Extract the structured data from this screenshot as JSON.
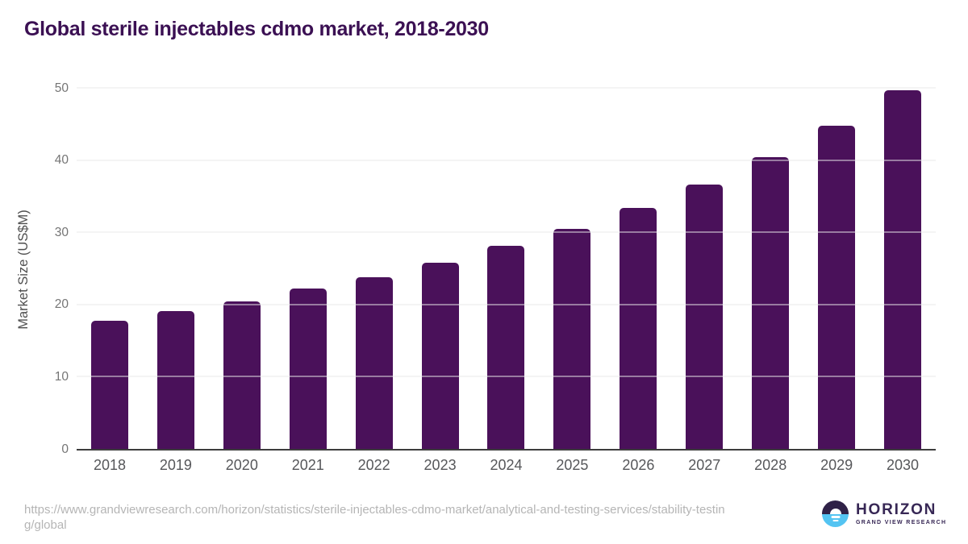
{
  "title": "Global sterile injectables cdmo market, 2018-2030",
  "chart_data": {
    "type": "bar",
    "title": "Global sterile injectables cdmo market, 2018-2030",
    "categories": [
      "2018",
      "2019",
      "2020",
      "2021",
      "2022",
      "2023",
      "2024",
      "2025",
      "2026",
      "2027",
      "2028",
      "2029",
      "2030"
    ],
    "values": [
      17.8,
      19.1,
      20.4,
      22.2,
      23.8,
      25.8,
      28.1,
      30.5,
      33.4,
      36.6,
      40.4,
      44.8,
      49.7
    ],
    "xlabel": "",
    "ylabel": "Market Size (US$M)",
    "ylim": [
      0,
      50
    ],
    "yticks": [
      0,
      10,
      20,
      30,
      40,
      50
    ],
    "grid": "horizontal",
    "legend": "none",
    "bar_color": "#4a115a"
  },
  "colors": {
    "title_text": "#3b1053",
    "bar": "#4a115a",
    "axis_line": "#3d3d3d",
    "gridline": "#e8e8e8",
    "ytick_text": "#757575",
    "xtick_text": "#56575a",
    "url_text": "#b5b5b5",
    "logo_purple": "#2f2147",
    "logo_blue": "#54c4f2"
  },
  "footer": {
    "source_url": "https://www.grandviewresearch.com/horizon/statistics/sterile-injectables-cdmo-market/analytical-and-testing-services/stability-testing/global",
    "logo": {
      "brand": "HORIZON",
      "subbrand": "GRAND VIEW RESEARCH"
    }
  }
}
